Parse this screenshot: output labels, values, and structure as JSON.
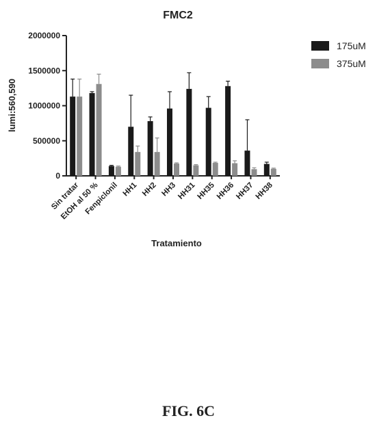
{
  "figure": {
    "caption": "FIG. 6C"
  },
  "chart_data": {
    "type": "bar",
    "title": "FMC2",
    "xlabel": "Tratamiento",
    "ylabel": "lumi:560,590",
    "ylim": [
      0,
      2000000
    ],
    "yticks": [
      0,
      500000,
      1000000,
      1500000,
      2000000
    ],
    "ytick_labels": [
      "0",
      "500000",
      "1000000",
      "1500000",
      "2000000"
    ],
    "categories": [
      "Sin tratar",
      "EtOH al 50 %",
      "Fenpiclonil",
      "HH1",
      "HH2",
      "HH3",
      "HH31",
      "HH35",
      "HH36",
      "HH37",
      "HH38"
    ],
    "legend_position": "top-right",
    "series": [
      {
        "name": "175uM",
        "color": "#1a1a1a",
        "values": [
          1130000,
          1180000,
          140000,
          700000,
          780000,
          960000,
          1240000,
          970000,
          1280000,
          360000,
          170000
        ],
        "errors": [
          250000,
          20000,
          10000,
          450000,
          60000,
          240000,
          230000,
          160000,
          70000,
          440000,
          25000
        ]
      },
      {
        "name": "375uM",
        "color": "#8c8c8c",
        "values": [
          1130000,
          1310000,
          130000,
          340000,
          340000,
          175000,
          150000,
          185000,
          180000,
          95000,
          100000
        ],
        "errors": [
          250000,
          140000,
          10000,
          85000,
          200000,
          10000,
          10000,
          10000,
          35000,
          20000,
          10000
        ]
      }
    ]
  }
}
